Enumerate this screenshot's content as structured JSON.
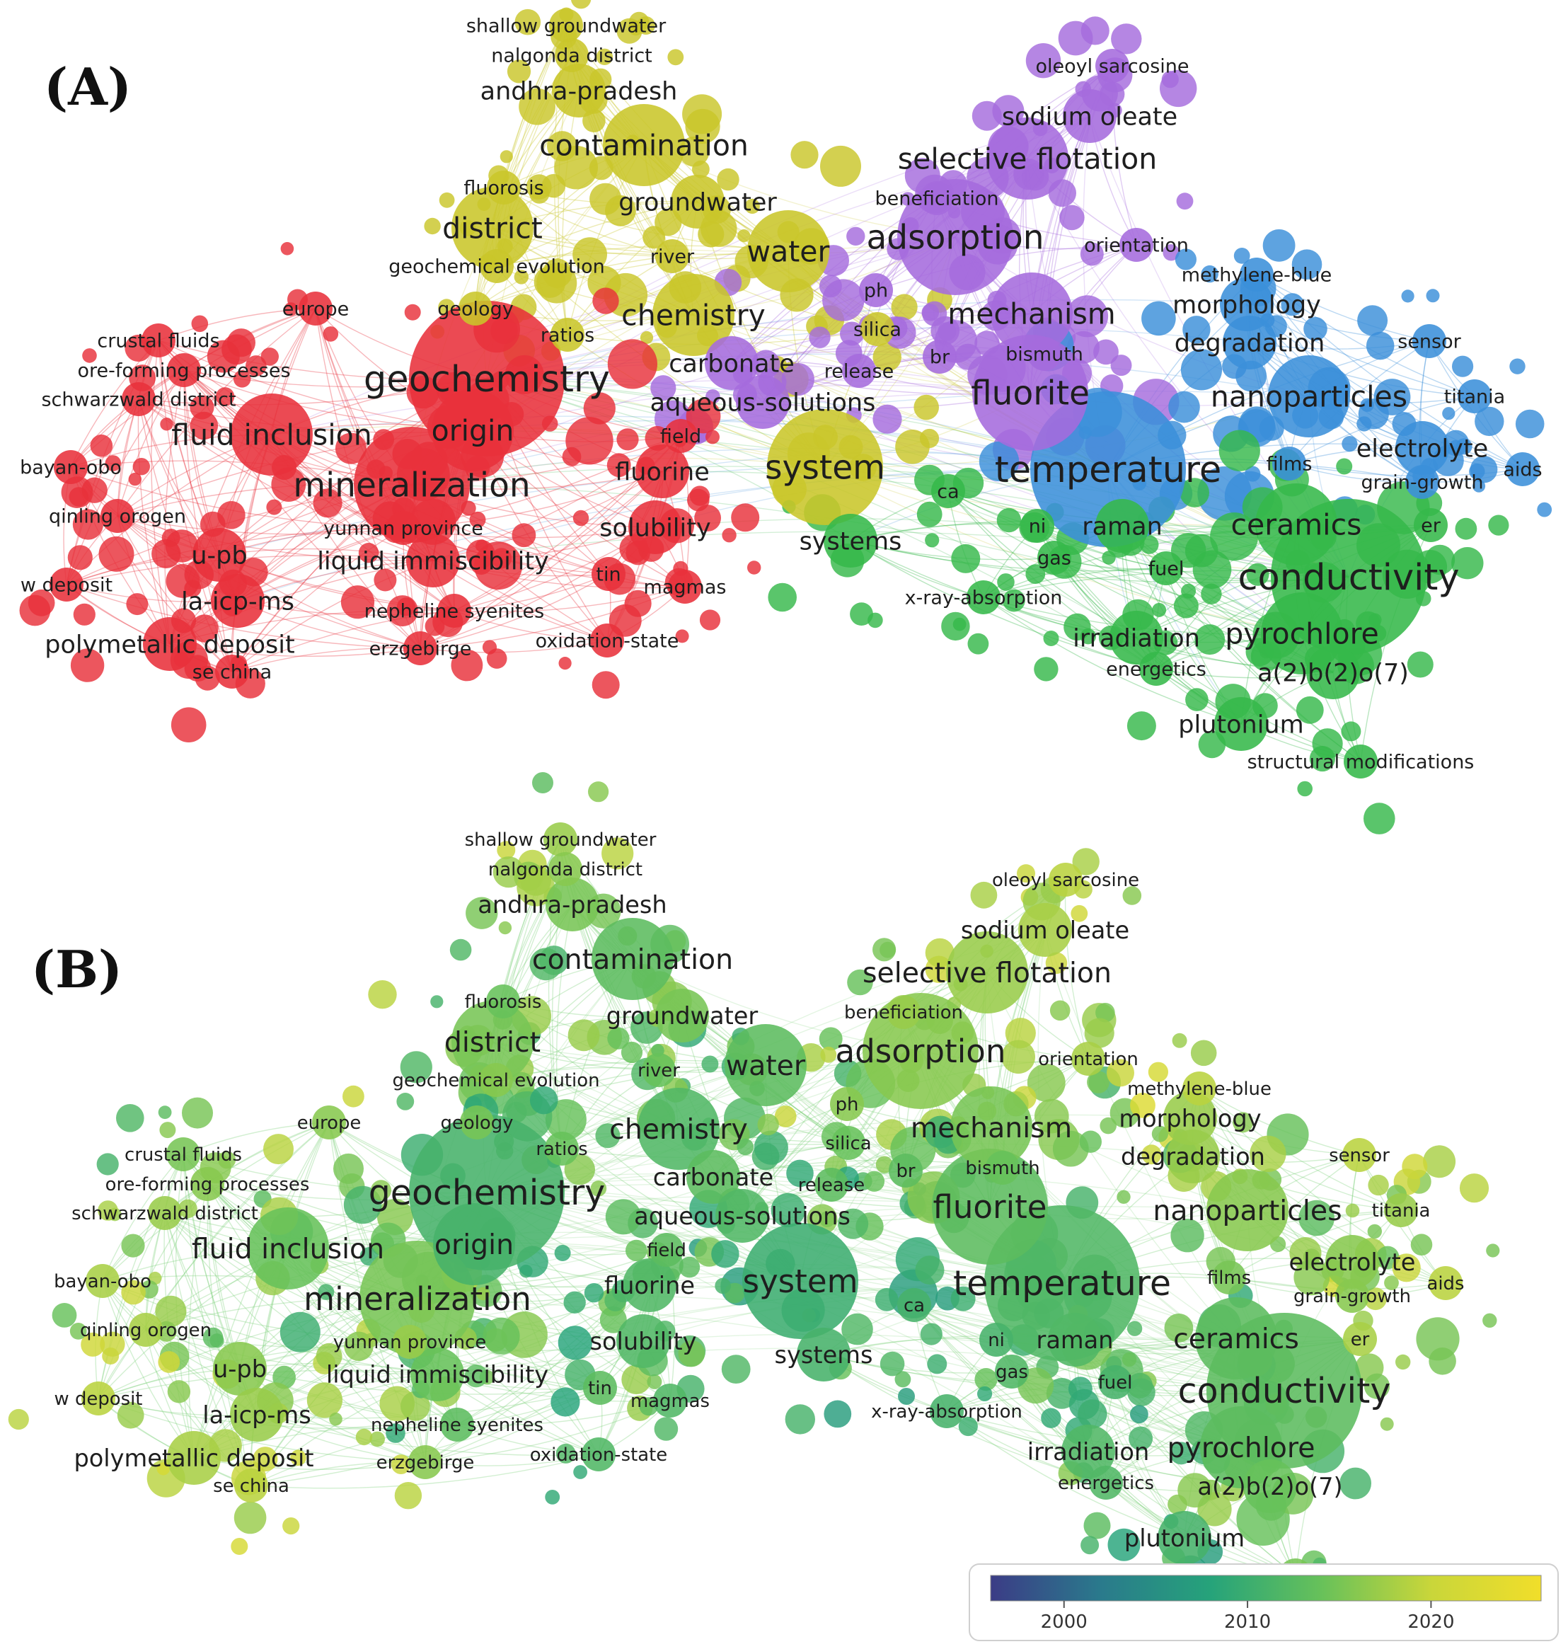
{
  "panels": [
    {
      "id": "A",
      "label": "(A)",
      "view": "cluster"
    },
    {
      "id": "B",
      "label": "(B)",
      "view": "overlay"
    }
  ],
  "clusters": {
    "red": "#e8313b",
    "yellow": "#c9c62a",
    "purple": "#a56bdd",
    "blue": "#3b8fd9",
    "green": "#36b84a"
  },
  "terms": [
    {
      "id": "shallow groundwater",
      "text": "shallow groundwater",
      "cluster": "yellow",
      "weight": 1,
      "year": 2017
    },
    {
      "id": "nalgonda district",
      "text": "nalgonda district",
      "cluster": "yellow",
      "weight": 1,
      "year": 2016
    },
    {
      "id": "andhra-pradesh",
      "text": "andhra-pradesh",
      "cluster": "yellow",
      "weight": 2,
      "year": 2015
    },
    {
      "id": "contamination",
      "text": "contamination",
      "cluster": "yellow",
      "weight": 3,
      "year": 2013
    },
    {
      "id": "fluorosis",
      "text": "fluorosis",
      "cluster": "yellow",
      "weight": 1,
      "year": 2014
    },
    {
      "id": "groundwater",
      "text": "groundwater",
      "cluster": "yellow",
      "weight": 2,
      "year": 2015
    },
    {
      "id": "district",
      "text": "district",
      "cluster": "yellow",
      "weight": 3,
      "year": 2015
    },
    {
      "id": "river",
      "text": "river",
      "cluster": "yellow",
      "weight": 1,
      "year": 2014
    },
    {
      "id": "water",
      "text": "water",
      "cluster": "yellow",
      "weight": 3,
      "year": 2013
    },
    {
      "id": "geochemical evolution",
      "text": "geochemical evolution",
      "cluster": "yellow",
      "weight": 1,
      "year": 2016
    },
    {
      "id": "geology",
      "text": "geology",
      "cluster": "yellow",
      "weight": 1,
      "year": 2015
    },
    {
      "id": "chemistry",
      "text": "chemistry",
      "cluster": "yellow",
      "weight": 3,
      "year": 2012
    },
    {
      "id": "ratios",
      "text": "ratios",
      "cluster": "yellow",
      "weight": 1,
      "year": 2014
    },
    {
      "id": "silica",
      "text": "silica",
      "cluster": "yellow",
      "weight": 1,
      "year": 2014
    },
    {
      "id": "system",
      "text": "system",
      "cluster": "yellow",
      "weight": 4,
      "year": 2010
    },
    {
      "id": "oleoyl sarcosine",
      "text": "oleoyl sarcosine",
      "cluster": "purple",
      "weight": 1,
      "year": 2019
    },
    {
      "id": "sodium oleate",
      "text": "sodium oleate",
      "cluster": "purple",
      "weight": 2,
      "year": 2018
    },
    {
      "id": "selective flotation",
      "text": "selective flotation",
      "cluster": "purple",
      "weight": 3,
      "year": 2017
    },
    {
      "id": "beneficiation",
      "text": "beneficiation",
      "cluster": "purple",
      "weight": 1,
      "year": 2017
    },
    {
      "id": "adsorption",
      "text": "adsorption",
      "cluster": "purple",
      "weight": 4,
      "year": 2016
    },
    {
      "id": "orientation",
      "text": "orientation",
      "cluster": "purple",
      "weight": 1,
      "year": 2018
    },
    {
      "id": "ph",
      "text": "ph",
      "cluster": "purple",
      "weight": 1,
      "year": 2016
    },
    {
      "id": "mechanism",
      "text": "mechanism",
      "cluster": "purple",
      "weight": 3,
      "year": 2015
    },
    {
      "id": "bismuth",
      "text": "bismuth",
      "cluster": "purple",
      "weight": 1,
      "year": 2014
    },
    {
      "id": "br",
      "text": "br",
      "cluster": "purple",
      "weight": 1,
      "year": 2013
    },
    {
      "id": "release",
      "text": "release",
      "cluster": "purple",
      "weight": 1,
      "year": 2013
    },
    {
      "id": "carbonate",
      "text": "carbonate",
      "cluster": "purple",
      "weight": 2,
      "year": 2013
    },
    {
      "id": "aqueous-solutions",
      "text": "aqueous-solutions",
      "cluster": "purple",
      "weight": 2,
      "year": 2012
    },
    {
      "id": "fluorite",
      "text": "fluorite",
      "cluster": "purple",
      "weight": 4,
      "year": 2013
    },
    {
      "id": "methylene-blue",
      "text": "methylene-blue",
      "cluster": "blue",
      "weight": 1,
      "year": 2019
    },
    {
      "id": "morphology",
      "text": "morphology",
      "cluster": "blue",
      "weight": 2,
      "year": 2017
    },
    {
      "id": "degradation",
      "text": "degradation",
      "cluster": "blue",
      "weight": 2,
      "year": 2017
    },
    {
      "id": "sensor",
      "text": "sensor",
      "cluster": "blue",
      "weight": 1,
      "year": 2019
    },
    {
      "id": "nanoparticles",
      "text": "nanoparticles",
      "cluster": "blue",
      "weight": 3,
      "year": 2016
    },
    {
      "id": "titania",
      "text": "titania",
      "cluster": "blue",
      "weight": 1,
      "year": 2017
    },
    {
      "id": "electrolyte",
      "text": "electrolyte",
      "cluster": "blue",
      "weight": 2,
      "year": 2016
    },
    {
      "id": "films",
      "text": "films",
      "cluster": "blue",
      "weight": 1,
      "year": 2015
    },
    {
      "id": "grain-growth",
      "text": "grain-growth",
      "cluster": "blue",
      "weight": 1,
      "year": 2016
    },
    {
      "id": "aids",
      "text": "aids",
      "cluster": "blue",
      "weight": 1,
      "year": 2019
    },
    {
      "id": "temperature",
      "text": "temperature",
      "cluster": "blue",
      "weight": 5,
      "year": 2012
    },
    {
      "id": "ca",
      "text": "ca",
      "cluster": "green",
      "weight": 1,
      "year": 2011
    },
    {
      "id": "ni",
      "text": "ni",
      "cluster": "green",
      "weight": 1,
      "year": 2011
    },
    {
      "id": "raman",
      "text": "raman",
      "cluster": "green",
      "weight": 2,
      "year": 2012
    },
    {
      "id": "ceramics",
      "text": "ceramics",
      "cluster": "green",
      "weight": 3,
      "year": 2013
    },
    {
      "id": "er",
      "text": "er",
      "cluster": "green",
      "weight": 1,
      "year": 2018
    },
    {
      "id": "systems",
      "text": "systems",
      "cluster": "green",
      "weight": 2,
      "year": 2011
    },
    {
      "id": "gas",
      "text": "gas",
      "cluster": "green",
      "weight": 1,
      "year": 2012
    },
    {
      "id": "fuel",
      "text": "fuel",
      "cluster": "green",
      "weight": 1,
      "year": 2011
    },
    {
      "id": "conductivity",
      "text": "conductivity",
      "cluster": "green",
      "weight": 5,
      "year": 2013
    },
    {
      "id": "x-ray-absorption",
      "text": "x-ray-absorption",
      "cluster": "green",
      "weight": 1,
      "year": 2011
    },
    {
      "id": "irradiation",
      "text": "irradiation",
      "cluster": "green",
      "weight": 2,
      "year": 2012
    },
    {
      "id": "pyrochlore",
      "text": "pyrochlore",
      "cluster": "green",
      "weight": 3,
      "year": 2013
    },
    {
      "id": "energetics",
      "text": "energetics",
      "cluster": "green",
      "weight": 1,
      "year": 2012
    },
    {
      "id": "a(2)b(2)o(7)",
      "text": "a(2)b(2)o(7)",
      "cluster": "green",
      "weight": 2,
      "year": 2014
    },
    {
      "id": "plutonium",
      "text": "plutonium",
      "cluster": "green",
      "weight": 2,
      "year": 2011
    },
    {
      "id": "structural modifications",
      "text": "structural modifications",
      "cluster": "green",
      "weight": 1,
      "year": 2015
    },
    {
      "id": "europe",
      "text": "europe",
      "cluster": "red",
      "weight": 1,
      "year": 2016
    },
    {
      "id": "crustal fluids",
      "text": "crustal fluids",
      "cluster": "red",
      "weight": 1,
      "year": 2015
    },
    {
      "id": "ore-forming processes",
      "text": "ore-forming processes",
      "cluster": "red",
      "weight": 1,
      "year": 2016
    },
    {
      "id": "schwarzwald district",
      "text": "schwarzwald district",
      "cluster": "red",
      "weight": 1,
      "year": 2017
    },
    {
      "id": "geochemistry",
      "text": "geochemistry",
      "cluster": "red",
      "weight": 5,
      "year": 2011
    },
    {
      "id": "origin",
      "text": "origin",
      "cluster": "red",
      "weight": 3,
      "year": 2011
    },
    {
      "id": "fluid inclusion",
      "text": "fluid inclusion",
      "cluster": "red",
      "weight": 3,
      "year": 2014
    },
    {
      "id": "mineralization",
      "text": "mineralization",
      "cluster": "red",
      "weight": 4,
      "year": 2015
    },
    {
      "id": "bayan-obo",
      "text": "bayan-obo",
      "cluster": "red",
      "weight": 1,
      "year": 2018
    },
    {
      "id": "qinling orogen",
      "text": "qinling orogen",
      "cluster": "red",
      "weight": 1,
      "year": 2018
    },
    {
      "id": "yunnan province",
      "text": "yunnan province",
      "cluster": "red",
      "weight": 1,
      "year": 2017
    },
    {
      "id": "liquid immiscibility",
      "text": "liquid immiscibility",
      "cluster": "red",
      "weight": 2,
      "year": 2014
    },
    {
      "id": "u-pb",
      "text": "u-pb",
      "cluster": "red",
      "weight": 2,
      "year": 2016
    },
    {
      "id": "w deposit",
      "text": "w deposit",
      "cluster": "red",
      "weight": 1,
      "year": 2019
    },
    {
      "id": "la-icp-ms",
      "text": "la-icp-ms",
      "cluster": "red",
      "weight": 2,
      "year": 2017
    },
    {
      "id": "nepheline syenites",
      "text": "nepheline syenites",
      "cluster": "red",
      "weight": 1,
      "year": 2013
    },
    {
      "id": "polymetallic deposit",
      "text": "polymetallic deposit",
      "cluster": "red",
      "weight": 2,
      "year": 2018
    },
    {
      "id": "erzgebirge",
      "text": "erzgebirge",
      "cluster": "red",
      "weight": 1,
      "year": 2016
    },
    {
      "id": "se china",
      "text": "se china",
      "cluster": "red",
      "weight": 1,
      "year": 2019
    },
    {
      "id": "oxidation-state",
      "text": "oxidation-state",
      "cluster": "red",
      "weight": 1,
      "year": 2012
    },
    {
      "id": "tin",
      "text": "tin",
      "cluster": "red",
      "weight": 1,
      "year": 2013
    },
    {
      "id": "magmas",
      "text": "magmas",
      "cluster": "red",
      "weight": 1,
      "year": 2012
    },
    {
      "id": "solubility",
      "text": "solubility",
      "cluster": "red",
      "weight": 2,
      "year": 2012
    },
    {
      "id": "fluorine",
      "text": "fluorine",
      "cluster": "red",
      "weight": 2,
      "year": 2012
    },
    {
      "id": "field",
      "text": "field",
      "cluster": "red",
      "weight": 1,
      "year": 2013
    }
  ],
  "colorbar": {
    "ticks": [
      "2000",
      "2010",
      "2020"
    ],
    "min_year": 1996,
    "max_year": 2026,
    "stops": [
      "#3b3c86",
      "#2a7a8c",
      "#26a37a",
      "#67c15a",
      "#c9d63a",
      "#f1de2a"
    ]
  }
}
